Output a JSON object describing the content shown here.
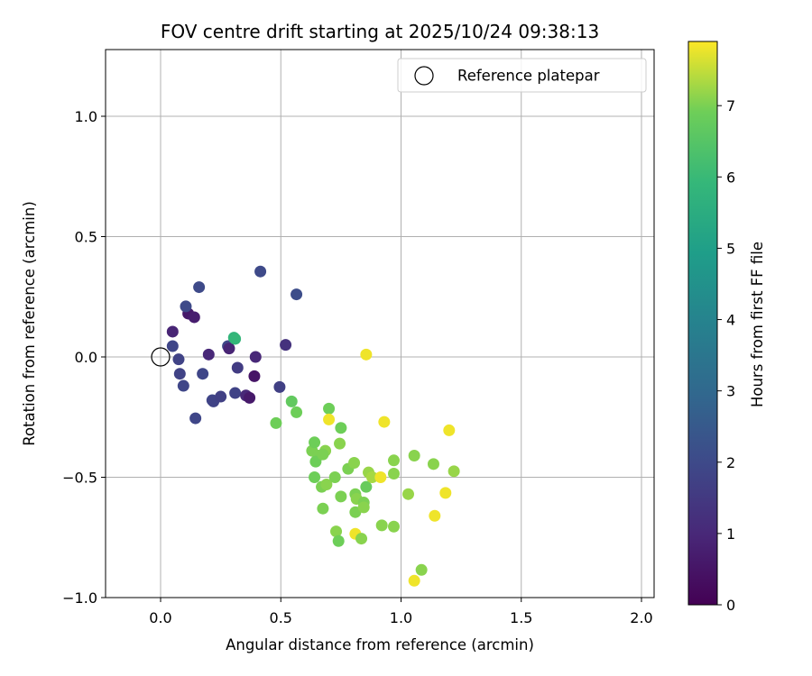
{
  "chart_data": {
    "type": "scatter",
    "title": "FOV centre drift starting at 2025/10/24 09:38:13",
    "xlabel": "Angular distance from reference (arcmin)",
    "ylabel": "Rotation from reference (arcmin)",
    "xlim": [
      -0.23,
      2.05
    ],
    "ylim": [
      -1.0,
      1.27
    ],
    "xticks": [
      0.0,
      0.5,
      1.0,
      1.5,
      2.0
    ],
    "xtick_labels": [
      "0.0",
      "0.5",
      "1.0",
      "1.5",
      "2.0"
    ],
    "yticks": [
      -1.0,
      -0.5,
      0.0,
      0.5,
      1.0
    ],
    "ytick_labels": [
      "−1.0",
      "−0.5",
      "0.0",
      "0.5",
      "1.0"
    ],
    "grid": true,
    "legend": {
      "location": "top-right",
      "entries": [
        "Reference platepar"
      ]
    },
    "reference_point": {
      "x": 0.0,
      "y": 0.0,
      "marker": "open-circle",
      "label": "Reference platepar"
    },
    "colorbar": {
      "label": "Hours from first FF file",
      "min": 0,
      "max": 7.9,
      "ticks": [
        0,
        1,
        2,
        3,
        4,
        5,
        6,
        7
      ],
      "tick_labels": [
        "0",
        "1",
        "2",
        "3",
        "4",
        "5",
        "6",
        "7"
      ],
      "colormap": "viridis"
    },
    "points": [
      {
        "x": 0.05,
        "y": 0.105,
        "h": 0.9
      },
      {
        "x": 0.115,
        "y": 0.18,
        "h": 0.6
      },
      {
        "x": 0.14,
        "y": 0.165,
        "h": 0.7
      },
      {
        "x": 0.105,
        "y": 0.21,
        "h": 2.0
      },
      {
        "x": 0.16,
        "y": 0.29,
        "h": 2.0
      },
      {
        "x": 0.05,
        "y": 0.045,
        "h": 1.9
      },
      {
        "x": 0.075,
        "y": -0.01,
        "h": 1.8
      },
      {
        "x": 0.08,
        "y": -0.07,
        "h": 1.8
      },
      {
        "x": 0.095,
        "y": -0.12,
        "h": 1.9
      },
      {
        "x": 0.175,
        "y": -0.07,
        "h": 1.9
      },
      {
        "x": 0.145,
        "y": -0.255,
        "h": 1.9
      },
      {
        "x": 0.2,
        "y": 0.01,
        "h": 1.0
      },
      {
        "x": 0.215,
        "y": -0.18,
        "h": 1.9
      },
      {
        "x": 0.22,
        "y": -0.185,
        "h": 1.8
      },
      {
        "x": 0.25,
        "y": -0.165,
        "h": 1.7
      },
      {
        "x": 0.28,
        "y": 0.045,
        "h": 1.9
      },
      {
        "x": 0.285,
        "y": 0.035,
        "h": 0.9
      },
      {
        "x": 0.305,
        "y": 0.08,
        "h": 5.8
      },
      {
        "x": 0.31,
        "y": 0.075,
        "h": 5.9
      },
      {
        "x": 0.32,
        "y": -0.045,
        "h": 1.6
      },
      {
        "x": 0.31,
        "y": -0.15,
        "h": 1.8
      },
      {
        "x": 0.355,
        "y": -0.16,
        "h": 1.0
      },
      {
        "x": 0.37,
        "y": -0.17,
        "h": 0.6
      },
      {
        "x": 0.39,
        "y": -0.08,
        "h": 0.5
      },
      {
        "x": 0.395,
        "y": 0.0,
        "h": 1.0
      },
      {
        "x": 0.415,
        "y": 0.355,
        "h": 2.0
      },
      {
        "x": 0.495,
        "y": -0.125,
        "h": 1.7
      },
      {
        "x": 0.52,
        "y": 0.05,
        "h": 1.3
      },
      {
        "x": 0.565,
        "y": 0.26,
        "h": 2.1
      },
      {
        "x": 0.48,
        "y": -0.275,
        "h": 6.9
      },
      {
        "x": 0.545,
        "y": -0.185,
        "h": 6.7
      },
      {
        "x": 0.565,
        "y": -0.23,
        "h": 6.9
      },
      {
        "x": 0.63,
        "y": -0.39,
        "h": 7.0
      },
      {
        "x": 0.64,
        "y": -0.355,
        "h": 6.9
      },
      {
        "x": 0.655,
        "y": -0.41,
        "h": 7.0
      },
      {
        "x": 0.645,
        "y": -0.435,
        "h": 6.9
      },
      {
        "x": 0.685,
        "y": -0.39,
        "h": 7.1
      },
      {
        "x": 0.675,
        "y": -0.405,
        "h": 7.0
      },
      {
        "x": 0.64,
        "y": -0.5,
        "h": 6.9
      },
      {
        "x": 0.67,
        "y": -0.54,
        "h": 7.0
      },
      {
        "x": 0.69,
        "y": -0.53,
        "h": 7.1
      },
      {
        "x": 0.675,
        "y": -0.63,
        "h": 7.0
      },
      {
        "x": 0.7,
        "y": -0.215,
        "h": 6.9
      },
      {
        "x": 0.7,
        "y": -0.26,
        "h": 7.8
      },
      {
        "x": 0.75,
        "y": -0.295,
        "h": 6.9
      },
      {
        "x": 0.745,
        "y": -0.36,
        "h": 7.1
      },
      {
        "x": 0.725,
        "y": -0.5,
        "h": 7.0
      },
      {
        "x": 0.75,
        "y": -0.58,
        "h": 7.0
      },
      {
        "x": 0.73,
        "y": -0.725,
        "h": 7.1
      },
      {
        "x": 0.74,
        "y": -0.765,
        "h": 6.9
      },
      {
        "x": 0.78,
        "y": -0.465,
        "h": 7.0
      },
      {
        "x": 0.805,
        "y": -0.44,
        "h": 7.1
      },
      {
        "x": 0.81,
        "y": -0.57,
        "h": 7.0
      },
      {
        "x": 0.815,
        "y": -0.59,
        "h": 7.1
      },
      {
        "x": 0.81,
        "y": -0.645,
        "h": 7.0
      },
      {
        "x": 0.81,
        "y": -0.735,
        "h": 7.8
      },
      {
        "x": 0.835,
        "y": -0.755,
        "h": 7.1
      },
      {
        "x": 0.845,
        "y": -0.605,
        "h": 7.0
      },
      {
        "x": 0.845,
        "y": -0.625,
        "h": 7.1
      },
      {
        "x": 0.855,
        "y": -0.54,
        "h": 6.8
      },
      {
        "x": 0.865,
        "y": -0.48,
        "h": 7.2
      },
      {
        "x": 0.88,
        "y": -0.5,
        "h": 7.3
      },
      {
        "x": 0.915,
        "y": -0.5,
        "h": 7.8
      },
      {
        "x": 0.92,
        "y": -0.7,
        "h": 7.1
      },
      {
        "x": 0.855,
        "y": 0.01,
        "h": 7.8
      },
      {
        "x": 0.93,
        "y": -0.27,
        "h": 7.8
      },
      {
        "x": 0.97,
        "y": -0.43,
        "h": 7.1
      },
      {
        "x": 0.97,
        "y": -0.485,
        "h": 7.1
      },
      {
        "x": 0.97,
        "y": -0.705,
        "h": 7.1
      },
      {
        "x": 1.03,
        "y": -0.57,
        "h": 7.2
      },
      {
        "x": 1.055,
        "y": -0.41,
        "h": 7.1
      },
      {
        "x": 1.055,
        "y": -0.93,
        "h": 7.8
      },
      {
        "x": 1.085,
        "y": -0.885,
        "h": 7.1
      },
      {
        "x": 1.135,
        "y": -0.445,
        "h": 7.1
      },
      {
        "x": 1.14,
        "y": -0.66,
        "h": 7.8
      },
      {
        "x": 1.185,
        "y": -0.565,
        "h": 7.8
      },
      {
        "x": 1.2,
        "y": -0.305,
        "h": 7.8
      },
      {
        "x": 1.22,
        "y": -0.475,
        "h": 7.2
      }
    ]
  }
}
